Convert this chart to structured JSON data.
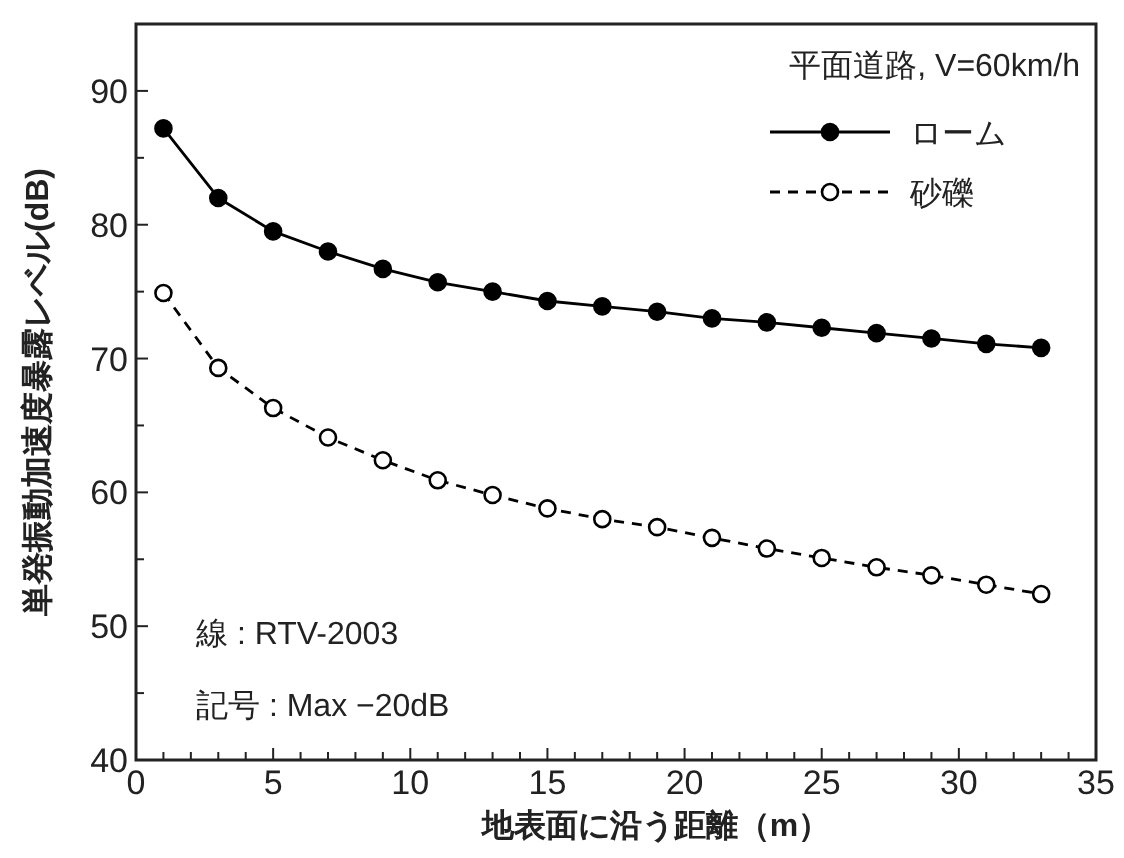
{
  "chart_data": {
    "type": "line",
    "xlabel": "地表面に沿う距離（m）",
    "ylabel": "単発振動加速度暴露レベル(dB)",
    "legend_title": "平面道路, V=60km/h",
    "x": [
      1,
      3,
      5,
      7,
      9,
      11,
      13,
      15,
      17,
      19,
      21,
      23,
      25,
      27,
      29,
      31,
      33
    ],
    "series": [
      {
        "name": "ローム",
        "color": "#000000",
        "line_style": "solid",
        "values": [
          87.2,
          82.0,
          79.5,
          78.0,
          76.7,
          75.7,
          75.0,
          74.3,
          73.9,
          73.5,
          73.0,
          72.7,
          72.3,
          71.9,
          71.5,
          71.1,
          70.8
        ]
      },
      {
        "name": "砂礫",
        "color": "#000000",
        "line_style": "dashed",
        "values": [
          74.9,
          69.3,
          66.3,
          64.1,
          62.4,
          60.9,
          59.8,
          58.8,
          58.0,
          57.4,
          56.6,
          55.8,
          55.1,
          54.4,
          53.8,
          53.1,
          52.4
        ]
      }
    ],
    "marker": "circle",
    "grid": false,
    "legend": "top right",
    "xlim": [
      0,
      35
    ],
    "ylim": [
      40,
      95
    ],
    "xticks": [
      0,
      {
        "value": 1,
        "label": null
      },
      {
        "value": 2,
        "label": null
      },
      {
        "value": 3,
        "label": null
      },
      {
        "value": 4,
        "label": null
      },
      5,
      {
        "value": 6,
        "label": null
      },
      {
        "value": 7,
        "label": null
      },
      {
        "value": 8,
        "label": null
      },
      {
        "value": 9,
        "label": null
      },
      10,
      {
        "value": 11,
        "label": null
      },
      {
        "value": 12,
        "label": null
      },
      {
        "value": 13,
        "label": null
      },
      {
        "value": 14,
        "label": null
      },
      15,
      {
        "value": 16,
        "label": null
      },
      {
        "value": 17,
        "label": null
      },
      {
        "value": 18,
        "label": null
      },
      {
        "value": 19,
        "label": null
      },
      20,
      {
        "value": 21,
        "label": null
      },
      {
        "value": 22,
        "label": null
      },
      {
        "value": 23,
        "label": null
      },
      {
        "value": 24,
        "label": null
      },
      25,
      {
        "value": 26,
        "label": null
      },
      {
        "value": 27,
        "label": null
      },
      {
        "value": 28,
        "label": null
      },
      {
        "value": 29,
        "label": null
      },
      30,
      {
        "value": 31,
        "label": null
      },
      {
        "value": 32,
        "label": null
      },
      {
        "value": 33,
        "label": null
      },
      {
        "value": 34,
        "label": null
      },
      35
    ],
    "yticks": [
      40,
      {
        "value": 45,
        "label": null
      },
      50,
      {
        "value": 55,
        "label": null
      },
      60,
      {
        "value": 65,
        "label": null
      },
      70,
      {
        "value": 75,
        "label": null
      },
      80,
      {
        "value": 85,
        "label": null
      },
      90
    ],
    "annotations": [
      "線 : RTV-2003",
      "記号 : Max −20dB"
    ]
  }
}
